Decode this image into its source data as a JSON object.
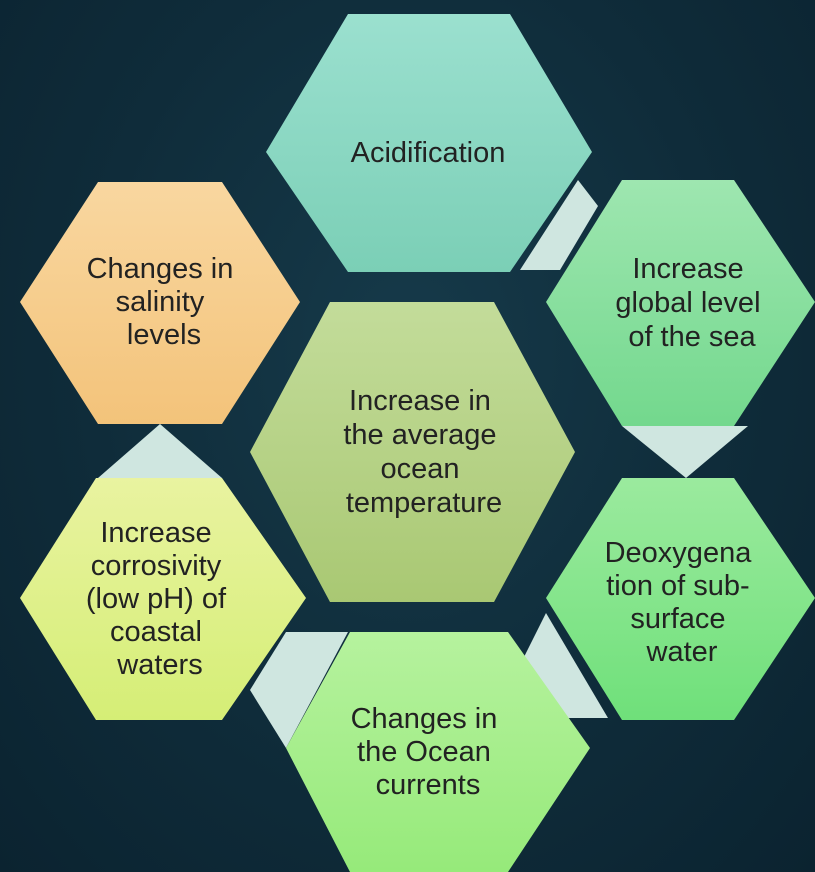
{
  "diagram": {
    "center": {
      "lines": [
        "Increase in",
        "the average",
        "ocean",
        "temperature"
      ],
      "color": "#b3cf83"
    },
    "hexagons": [
      {
        "id": "acidification",
        "lines": [
          "Acidification"
        ],
        "color": "#8ad6c2"
      },
      {
        "id": "sea-level",
        "lines": [
          "Increase",
          "global level",
          "of the sea"
        ],
        "color": "#86dd9a"
      },
      {
        "id": "deoxygenation",
        "lines": [
          "Deoxygena",
          "tion of sub-",
          "surface",
          "water"
        ],
        "color": "#86e48a"
      },
      {
        "id": "ocean-currents",
        "lines": [
          "Changes in",
          "the Ocean",
          "currents"
        ],
        "color": "#a8ee8c"
      },
      {
        "id": "corrosivity",
        "lines": [
          "Increase",
          "corrosivity",
          "(low pH) of",
          "coastal",
          "waters"
        ],
        "color": "#dff08a"
      },
      {
        "id": "salinity",
        "lines": [
          "Changes in",
          "salinity",
          "levels"
        ],
        "color": "#f6cc8c"
      }
    ],
    "connector_color": "#cfe6e0"
  }
}
